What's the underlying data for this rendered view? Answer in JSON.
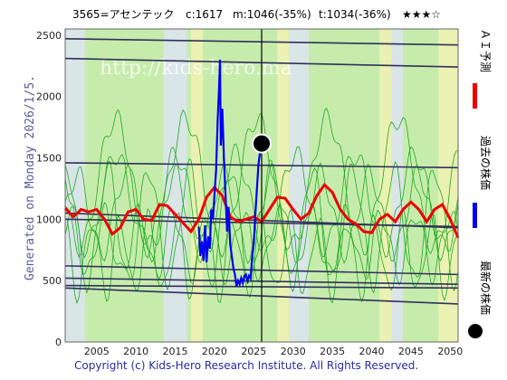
{
  "header": {
    "ticker": "3565=アセンテック",
    "current": "c:1617",
    "median": "m:1046(-35%)",
    "target": "t:1034(-36%)",
    "rating": "★★★☆"
  },
  "side_label": "Generated on Monday 2026/1/5.",
  "legend": {
    "ai_forecast": "ＡＩ予測",
    "past_price": "過去の株価",
    "latest_price": "最新の株価"
  },
  "copyright": "Copyright (c) Kids-Hero Research Institute. All Rights Reserved.",
  "watermark": "http://kids-hero.ma",
  "colors": {
    "ai_forecast": "#ee0000",
    "past_price": "#0000ee",
    "latest_price": "#000000",
    "channel_lines": "#30305a",
    "green_lines": "#22aa22",
    "bg_light_green": "#c6ecac",
    "bg_yellow": "#f2f2b4",
    "bg_blue_gray": "#dde4f6"
  },
  "chart_data": {
    "type": "line",
    "xlim": [
      2001,
      2051
    ],
    "ylim": [
      0,
      2550
    ],
    "x_ticks": [
      2005,
      2010,
      2015,
      2020,
      2025,
      2030,
      2035,
      2040,
      2045,
      2050
    ],
    "y_ticks": [
      0,
      500,
      1000,
      1500,
      2000,
      2500
    ],
    "current_marker": {
      "x": 2026.0,
      "y": 1617
    },
    "current_vline_x": 2026.0,
    "series": [
      {
        "name": "AI予測",
        "values": [
          [
            2001,
            1090
          ],
          [
            2002,
            1020
          ],
          [
            2002.5,
            1045
          ],
          [
            2003,
            1080
          ],
          [
            2004,
            1060
          ],
          [
            2005,
            1080
          ],
          [
            2006,
            1000
          ],
          [
            2007,
            880
          ],
          [
            2008,
            930
          ],
          [
            2009,
            1060
          ],
          [
            2010,
            1080
          ],
          [
            2011,
            1000
          ],
          [
            2012,
            990
          ],
          [
            2013,
            1120
          ],
          [
            2014,
            1110
          ],
          [
            2015,
            1040
          ],
          [
            2016,
            970
          ],
          [
            2017,
            900
          ],
          [
            2018,
            1000
          ],
          [
            2019,
            1180
          ],
          [
            2020,
            1260
          ],
          [
            2021,
            1190
          ],
          [
            2022,
            1020
          ],
          [
            2023,
            980
          ],
          [
            2024,
            1000
          ],
          [
            2025,
            1020
          ],
          [
            2026,
            980
          ],
          [
            2027,
            1080
          ],
          [
            2028,
            1180
          ],
          [
            2029,
            1170
          ],
          [
            2030,
            1080
          ],
          [
            2031,
            1000
          ],
          [
            2032,
            1050
          ],
          [
            2033,
            1190
          ],
          [
            2034,
            1280
          ],
          [
            2035,
            1220
          ],
          [
            2036,
            1080
          ],
          [
            2037,
            1000
          ],
          [
            2038,
            960
          ],
          [
            2039,
            900
          ],
          [
            2040,
            890
          ],
          [
            2041,
            1000
          ],
          [
            2042,
            1040
          ],
          [
            2043,
            980
          ],
          [
            2044,
            1080
          ],
          [
            2045,
            1140
          ],
          [
            2046,
            1080
          ],
          [
            2047,
            980
          ],
          [
            2048,
            1080
          ],
          [
            2049,
            1120
          ],
          [
            2050,
            1000
          ],
          [
            2051,
            850
          ]
        ]
      },
      {
        "name": "過去の株価",
        "values": [
          [
            2018.0,
            940
          ],
          [
            2018.2,
            700
          ],
          [
            2018.4,
            820
          ],
          [
            2018.6,
            660
          ],
          [
            2018.8,
            950
          ],
          [
            2019.0,
            650
          ],
          [
            2019.2,
            860
          ],
          [
            2019.4,
            760
          ],
          [
            2019.6,
            1080
          ],
          [
            2019.8,
            1000
          ],
          [
            2020.0,
            1200
          ],
          [
            2020.2,
            1400
          ],
          [
            2020.4,
            1800
          ],
          [
            2020.6,
            2100
          ],
          [
            2020.7,
            2300
          ],
          [
            2020.8,
            1600
          ],
          [
            2021.0,
            1900
          ],
          [
            2021.2,
            1500
          ],
          [
            2021.4,
            1200
          ],
          [
            2021.6,
            900
          ],
          [
            2021.8,
            1100
          ],
          [
            2022.0,
            800
          ],
          [
            2022.2,
            700
          ],
          [
            2022.4,
            600
          ],
          [
            2022.6,
            550
          ],
          [
            2022.8,
            450
          ],
          [
            2023.0,
            500
          ],
          [
            2023.2,
            470
          ],
          [
            2023.4,
            520
          ],
          [
            2023.6,
            480
          ],
          [
            2023.8,
            540
          ],
          [
            2024.0,
            550
          ],
          [
            2024.2,
            500
          ],
          [
            2024.4,
            540
          ],
          [
            2024.6,
            520
          ],
          [
            2024.8,
            700
          ],
          [
            2025.0,
            800
          ],
          [
            2025.2,
            1050
          ],
          [
            2025.4,
            1250
          ],
          [
            2025.6,
            1450
          ],
          [
            2025.8,
            1550
          ],
          [
            2026.0,
            1617
          ]
        ]
      },
      {
        "name": "channel_lines",
        "values": [
          [
            2001,
            2470,
            2051,
            2420
          ],
          [
            2001,
            2310,
            2051,
            2240
          ],
          [
            2001,
            1460,
            2051,
            1420
          ],
          [
            2001,
            1050,
            2051,
            930
          ],
          [
            2001,
            1000,
            2051,
            940
          ],
          [
            2001,
            620,
            2051,
            550
          ],
          [
            2001,
            520,
            2051,
            470
          ],
          [
            2001,
            460,
            2051,
            440
          ],
          [
            2001,
            440,
            2051,
            310
          ]
        ]
      }
    ]
  }
}
